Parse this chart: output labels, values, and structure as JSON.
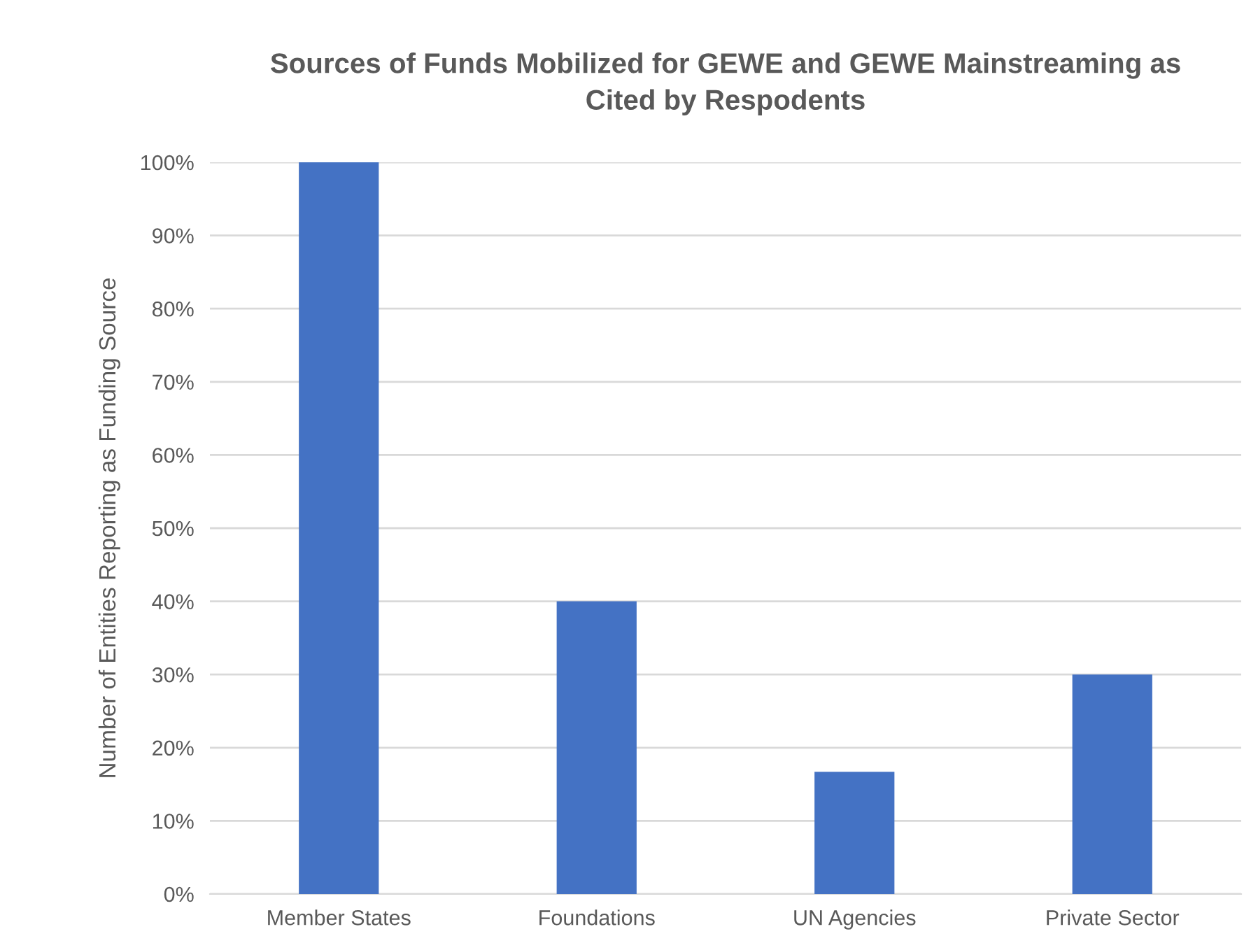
{
  "chart_data": {
    "type": "bar",
    "title": "Sources of Funds Mobilized for GEWE and GEWE Mainstreaming as\nCited by Respodents",
    "ylabel": "Number of Entities Reporting as Funding Source",
    "categories": [
      "Member States",
      "Foundations",
      "UN Agencies",
      "Private Sector"
    ],
    "values": [
      100,
      40,
      16.7,
      30
    ],
    "color": "#4472c4",
    "ylim": [
      0,
      100
    ],
    "yticks": [
      {
        "value": 0,
        "label": "0%"
      },
      {
        "value": 10,
        "label": "10%"
      },
      {
        "value": 20,
        "label": "20%"
      },
      {
        "value": 30,
        "label": "30%"
      },
      {
        "value": 40,
        "label": "40%"
      },
      {
        "value": 50,
        "label": "50%"
      },
      {
        "value": 60,
        "label": "60%"
      },
      {
        "value": 70,
        "label": "70%"
      },
      {
        "value": 80,
        "label": "80%"
      },
      {
        "value": 90,
        "label": "90%"
      },
      {
        "value": 100,
        "label": "100%"
      }
    ],
    "grid": "y",
    "legend": false
  }
}
